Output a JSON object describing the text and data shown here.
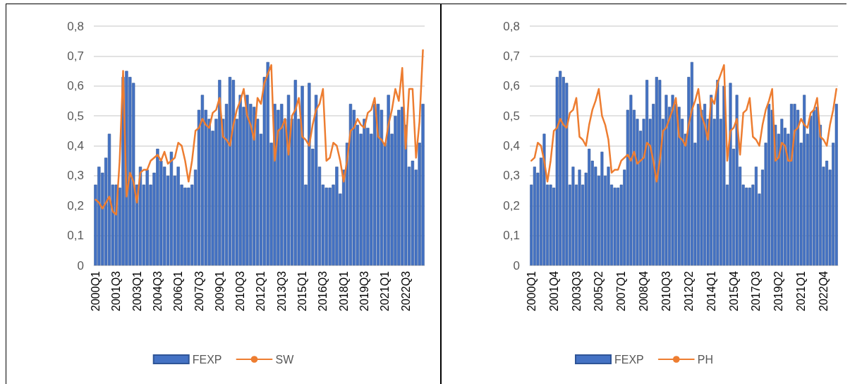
{
  "chart_data": [
    {
      "type": "bar",
      "categories": [
        "2000Q1",
        null,
        null,
        null,
        null,
        null,
        "2001Q3",
        null,
        null,
        null,
        null,
        null,
        "2003Q1",
        null,
        null,
        null,
        null,
        null,
        "2004Q3",
        null,
        null,
        null,
        null,
        null,
        "2006Q1",
        null,
        null,
        null,
        null,
        null,
        "2007Q3",
        null,
        null,
        null,
        null,
        null,
        "2009Q1",
        null,
        null,
        null,
        null,
        null,
        "2010Q3",
        null,
        null,
        null,
        null,
        null,
        "2012Q1",
        null,
        null,
        null,
        null,
        null,
        "2013Q3",
        null,
        null,
        null,
        null,
        null,
        "2015Q1",
        null,
        null,
        null,
        null,
        null,
        "2016Q3",
        null,
        null,
        null,
        null,
        null,
        "2018Q1",
        null,
        null,
        null,
        null,
        null,
        "2019Q3",
        null,
        null,
        null,
        null,
        null,
        "2021Q1",
        null,
        null,
        null,
        null,
        null,
        "2022Q3",
        null,
        null,
        null,
        null,
        null
      ],
      "series": [
        {
          "name": "FEXP",
          "color": "#4472c4",
          "values": [
            0.27,
            0.33,
            0.31,
            0.36,
            0.44,
            0.27,
            0.27,
            0.26,
            0.63,
            0.65,
            0.63,
            0.61,
            0.27,
            0.33,
            0.27,
            0.32,
            0.27,
            0.31,
            0.39,
            0.35,
            0.33,
            0.3,
            0.38,
            0.3,
            0.33,
            0.27,
            0.26,
            0.26,
            0.27,
            0.32,
            0.52,
            0.57,
            0.52,
            0.49,
            0.45,
            0.49,
            0.62,
            0.49,
            0.54,
            0.63,
            0.62,
            0.49,
            0.57,
            0.53,
            0.57,
            0.54,
            0.53,
            0.49,
            0.44,
            0.63,
            0.68,
            0.41,
            0.54,
            0.52,
            0.54,
            0.49,
            0.57,
            0.49,
            0.62,
            0.49,
            0.6,
            0.27,
            0.61,
            0.39,
            0.57,
            0.33,
            0.27,
            0.26,
            0.26,
            0.27,
            0.33,
            0.24,
            0.32,
            0.41,
            0.54,
            0.52,
            0.47,
            0.44,
            0.49,
            0.46,
            0.44,
            0.54,
            0.54,
            0.52,
            0.41,
            0.57,
            0.44,
            0.5,
            0.52,
            0.53,
            0.47,
            0.33,
            0.35,
            0.32,
            0.41,
            0.54
          ]
        },
        {
          "name": "SW",
          "type": "line",
          "color": "#ed7d31",
          "values": [
            0.22,
            0.21,
            0.19,
            0.21,
            0.23,
            0.18,
            0.17,
            0.35,
            0.65,
            0.23,
            0.31,
            0.28,
            0.21,
            0.31,
            0.32,
            0.32,
            0.35,
            0.36,
            0.37,
            0.35,
            0.38,
            0.34,
            0.35,
            0.36,
            0.41,
            0.4,
            0.35,
            0.28,
            0.35,
            0.45,
            0.46,
            0.49,
            0.47,
            0.46,
            0.51,
            0.52,
            0.56,
            0.43,
            0.42,
            0.4,
            0.47,
            0.52,
            0.55,
            0.59,
            0.5,
            0.47,
            0.42,
            0.56,
            0.54,
            0.61,
            0.64,
            0.67,
            0.35,
            0.45,
            0.46,
            0.49,
            0.37,
            0.5,
            0.52,
            0.56,
            0.43,
            0.42,
            0.4,
            0.47,
            0.52,
            0.54,
            0.59,
            0.35,
            0.36,
            0.41,
            0.4,
            0.35,
            0.28,
            0.35,
            0.45,
            0.46,
            0.49,
            0.47,
            0.46,
            0.51,
            0.52,
            0.56,
            0.43,
            0.42,
            0.4,
            0.47,
            0.52,
            0.59,
            0.55,
            0.66,
            0.39,
            0.59,
            0.59,
            0.36,
            0.48,
            0.72
          ]
        }
      ],
      "ylim": [
        0,
        0.8
      ],
      "yticks": [
        0,
        {
          "value": 0.1,
          "label": "0,1"
        },
        {
          "value": 0.2,
          "label": "0,2"
        },
        {
          "value": 0.3,
          "label": "0,3"
        },
        {
          "value": 0.4,
          "label": "0,4"
        },
        {
          "value": 0.5,
          "label": "0,5"
        },
        {
          "value": 0.6,
          "label": "0,6"
        },
        {
          "value": 0.7,
          "label": "0,7"
        },
        {
          "value": 0.8,
          "label": "0,8"
        }
      ],
      "grid": "y",
      "legend": "bottom",
      "marker": "none",
      "line_style": "solid"
    },
    {
      "type": "bar",
      "categories": [
        "2000Q1",
        null,
        null,
        null,
        null,
        null,
        null,
        "2001Q4",
        null,
        null,
        null,
        null,
        null,
        null,
        "2003Q3",
        null,
        null,
        null,
        null,
        null,
        null,
        "2005Q2",
        null,
        null,
        null,
        null,
        null,
        null,
        "2007Q1",
        null,
        null,
        null,
        null,
        null,
        null,
        "2008Q4",
        null,
        null,
        null,
        null,
        null,
        null,
        "2010Q3",
        null,
        null,
        null,
        null,
        null,
        null,
        "2012Q2",
        null,
        null,
        null,
        null,
        null,
        null,
        "2014Q1",
        null,
        null,
        null,
        null,
        null,
        null,
        "2015Q4",
        null,
        null,
        null,
        null,
        null,
        null,
        "2017Q3",
        null,
        null,
        null,
        null,
        null,
        null,
        "2019Q2",
        null,
        null,
        null,
        null,
        null,
        null,
        "2021Q1",
        null,
        null,
        null,
        null,
        null,
        null,
        "2022Q4",
        null,
        null,
        null,
        null
      ],
      "series": [
        {
          "name": "FEXP",
          "color": "#4472c4",
          "values": [
            0.27,
            0.33,
            0.31,
            0.36,
            0.44,
            0.27,
            0.27,
            0.26,
            0.63,
            0.65,
            0.63,
            0.61,
            0.27,
            0.33,
            0.27,
            0.32,
            0.27,
            0.31,
            0.39,
            0.35,
            0.33,
            0.3,
            0.38,
            0.3,
            0.33,
            0.27,
            0.26,
            0.26,
            0.27,
            0.32,
            0.52,
            0.57,
            0.52,
            0.49,
            0.45,
            0.49,
            0.62,
            0.49,
            0.54,
            0.63,
            0.62,
            0.49,
            0.57,
            0.53,
            0.57,
            0.54,
            0.53,
            0.49,
            0.44,
            0.63,
            0.68,
            0.41,
            0.54,
            0.52,
            0.54,
            0.49,
            0.57,
            0.49,
            0.62,
            0.49,
            0.6,
            0.27,
            0.61,
            0.39,
            0.57,
            0.33,
            0.27,
            0.26,
            0.26,
            0.27,
            0.33,
            0.24,
            0.32,
            0.41,
            0.54,
            0.52,
            0.47,
            0.44,
            0.49,
            0.46,
            0.44,
            0.54,
            0.54,
            0.52,
            0.41,
            0.57,
            0.44,
            0.5,
            0.52,
            0.53,
            0.47,
            0.33,
            0.35,
            0.32,
            0.41,
            0.54
          ]
        },
        {
          "name": "PH",
          "type": "line",
          "color": "#ed7d31",
          "values": [
            0.35,
            0.36,
            0.41,
            0.4,
            0.35,
            0.28,
            0.35,
            0.45,
            0.46,
            0.49,
            0.47,
            0.46,
            0.51,
            0.52,
            0.56,
            0.43,
            0.42,
            0.4,
            0.47,
            0.52,
            0.55,
            0.59,
            0.5,
            0.47,
            0.42,
            0.31,
            0.32,
            0.32,
            0.35,
            0.36,
            0.37,
            0.35,
            0.38,
            0.34,
            0.35,
            0.36,
            0.41,
            0.4,
            0.35,
            0.28,
            0.35,
            0.45,
            0.46,
            0.49,
            0.52,
            0.56,
            0.43,
            0.42,
            0.4,
            0.47,
            0.52,
            0.55,
            0.59,
            0.5,
            0.47,
            0.42,
            0.56,
            0.54,
            0.61,
            0.64,
            0.67,
            0.35,
            0.45,
            0.46,
            0.49,
            0.37,
            0.51,
            0.52,
            0.56,
            0.43,
            0.42,
            0.4,
            0.47,
            0.52,
            0.55,
            0.59,
            0.35,
            0.36,
            0.41,
            0.4,
            0.35,
            0.35,
            0.45,
            0.46,
            0.49,
            0.47,
            0.46,
            0.51,
            0.52,
            0.56,
            0.43,
            0.42,
            0.4,
            0.47,
            0.52,
            0.59
          ]
        }
      ],
      "ylim": [
        0,
        0.8
      ],
      "yticks": [
        0,
        {
          "value": 0.1,
          "label": "0,1"
        },
        {
          "value": 0.2,
          "label": "0,2"
        },
        {
          "value": 0.3,
          "label": "0,3"
        },
        {
          "value": 0.4,
          "label": "0,4"
        },
        {
          "value": 0.5,
          "label": "0,5"
        },
        {
          "value": 0.6,
          "label": "0,6"
        },
        {
          "value": 0.7,
          "label": "0,7"
        },
        {
          "value": 0.8,
          "label": "0,8"
        }
      ],
      "grid": "y",
      "legend": "bottom",
      "marker": "none",
      "line_style": "solid"
    }
  ]
}
